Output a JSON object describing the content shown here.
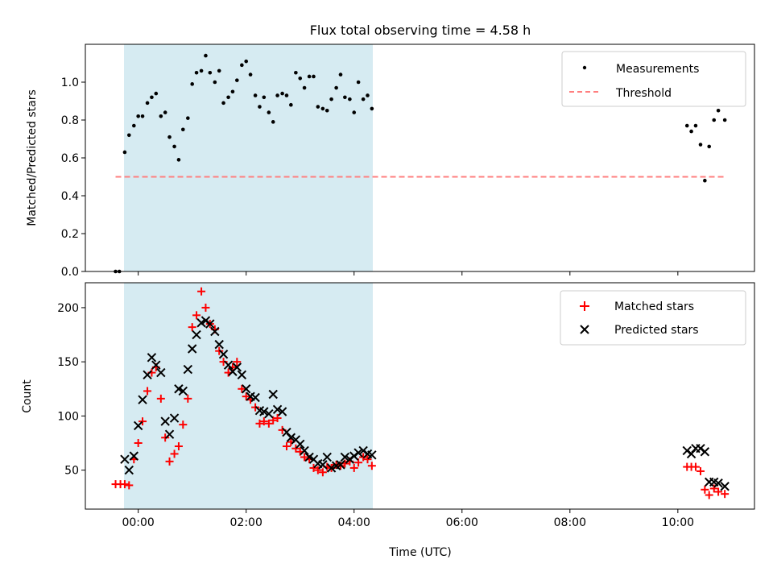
{
  "figure": {
    "title": "Flux total observing time = 4.58 h"
  },
  "colors": {
    "night_band": "#add8e6",
    "measurement": "#000000",
    "threshold": "#ff7f7f",
    "matched": "#ff0000",
    "predicted": "#000000"
  },
  "chart_data": [
    {
      "type": "scatter",
      "panel": "top",
      "title": "Flux total observing time = 4.58 h",
      "xlabel": "",
      "ylabel": "Matched/Predicted stars",
      "xlim": [
        -0.98,
        11.42
      ],
      "ylim": [
        0,
        1.2
      ],
      "x_ticks": [
        0,
        2,
        4,
        6,
        8,
        10
      ],
      "y_ticks": [
        0.0,
        0.2,
        0.4,
        0.6,
        0.8,
        1.0
      ],
      "y_tick_labels": [
        "0.0",
        "0.2",
        "0.4",
        "0.6",
        "0.8",
        "1.0"
      ],
      "grid": false,
      "legend": "upper right",
      "band": {
        "x_start": -0.25,
        "x_end": 4.33
      },
      "threshold_line": {
        "name": "Threshold",
        "y": 0.5,
        "x_start": -0.42,
        "x_end": 10.87
      },
      "series": [
        {
          "name": "Measurements",
          "marker": "dot",
          "x": [
            -0.42,
            -0.35,
            -0.25,
            -0.17,
            -0.08,
            0.0,
            0.08,
            0.17,
            0.25,
            0.33,
            0.42,
            0.5,
            0.58,
            0.67,
            0.75,
            0.83,
            0.92,
            1.0,
            1.08,
            1.17,
            1.25,
            1.33,
            1.42,
            1.5,
            1.58,
            1.67,
            1.75,
            1.83,
            1.92,
            2.0,
            2.08,
            2.17,
            2.25,
            2.33,
            2.42,
            2.5,
            2.58,
            2.67,
            2.75,
            2.83,
            2.92,
            3.0,
            3.08,
            3.17,
            3.25,
            3.33,
            3.42,
            3.5,
            3.58,
            3.67,
            3.75,
            3.83,
            3.92,
            4.0,
            4.08,
            4.17,
            4.25,
            4.33,
            10.17,
            10.25,
            10.33,
            10.42,
            10.5,
            10.58,
            10.67,
            10.75,
            10.87
          ],
          "y": [
            0.0,
            0.0,
            0.63,
            0.72,
            0.77,
            0.82,
            0.82,
            0.89,
            0.92,
            0.94,
            0.82,
            0.84,
            0.71,
            0.66,
            0.59,
            0.75,
            0.81,
            0.99,
            1.05,
            1.06,
            1.14,
            1.05,
            1.0,
            1.06,
            0.89,
            0.92,
            0.95,
            1.01,
            1.09,
            1.11,
            1.04,
            0.93,
            0.87,
            0.92,
            0.84,
            0.79,
            0.93,
            0.94,
            0.93,
            0.88,
            1.05,
            1.02,
            0.97,
            1.03,
            1.03,
            0.87,
            0.86,
            0.85,
            0.91,
            0.97,
            1.04,
            0.92,
            0.91,
            0.84,
            1.0,
            0.91,
            0.93,
            0.86,
            0.77,
            0.74,
            0.77,
            0.67,
            0.48,
            0.66,
            0.8,
            0.85,
            0.8
          ]
        }
      ]
    },
    {
      "type": "scatter",
      "panel": "bottom",
      "title": "",
      "xlabel": "Time (UTC)",
      "ylabel": "Count",
      "xlim": [
        -0.98,
        11.42
      ],
      "ylim": [
        14,
        223
      ],
      "x_ticks": [
        0,
        2,
        4,
        6,
        8,
        10
      ],
      "x_tick_labels": [
        "00:00",
        "02:00",
        "04:00",
        "06:00",
        "08:00",
        "10:00"
      ],
      "y_ticks": [
        50,
        100,
        150,
        200
      ],
      "y_tick_labels": [
        "50",
        "100",
        "150",
        "200"
      ],
      "grid": false,
      "legend": "upper right",
      "band": {
        "x_start": -0.25,
        "x_end": 4.33
      },
      "series": [
        {
          "name": "Matched stars",
          "marker": "plus",
          "x": [
            -0.42,
            -0.33,
            -0.25,
            -0.17,
            -0.08,
            0.0,
            0.08,
            0.17,
            0.25,
            0.33,
            0.42,
            0.5,
            0.58,
            0.67,
            0.75,
            0.83,
            0.92,
            1.0,
            1.08,
            1.17,
            1.25,
            1.33,
            1.42,
            1.5,
            1.58,
            1.67,
            1.75,
            1.83,
            1.92,
            2.0,
            2.08,
            2.17,
            2.25,
            2.33,
            2.42,
            2.5,
            2.58,
            2.67,
            2.75,
            2.83,
            2.92,
            3.0,
            3.08,
            3.17,
            3.25,
            3.33,
            3.42,
            3.5,
            3.58,
            3.67,
            3.75,
            3.83,
            3.92,
            4.0,
            4.08,
            4.17,
            4.25,
            4.33,
            10.17,
            10.25,
            10.33,
            10.42,
            10.5,
            10.58,
            10.67,
            10.75,
            10.87
          ],
          "y": [
            37,
            37,
            37,
            36,
            60,
            75,
            95,
            123,
            140,
            145,
            116,
            80,
            58,
            65,
            72,
            92,
            116,
            182,
            193,
            215,
            200,
            185,
            180,
            160,
            150,
            140,
            145,
            150,
            125,
            118,
            115,
            108,
            93,
            95,
            93,
            96,
            98,
            87,
            72,
            76,
            70,
            67,
            62,
            60,
            52,
            50,
            48,
            53,
            52,
            55,
            54,
            56,
            58,
            52,
            57,
            62,
            60,
            54,
            53,
            53,
            53,
            49,
            32,
            27,
            33,
            30,
            28
          ]
        },
        {
          "name": "Predicted stars",
          "marker": "x",
          "x": [
            -0.25,
            -0.17,
            -0.08,
            0.0,
            0.08,
            0.17,
            0.25,
            0.33,
            0.42,
            0.5,
            0.58,
            0.67,
            0.75,
            0.83,
            0.92,
            1.0,
            1.08,
            1.17,
            1.25,
            1.33,
            1.42,
            1.5,
            1.58,
            1.67,
            1.75,
            1.83,
            1.92,
            2.0,
            2.08,
            2.17,
            2.25,
            2.33,
            2.42,
            2.5,
            2.58,
            2.67,
            2.75,
            2.83,
            2.92,
            3.0,
            3.08,
            3.17,
            3.25,
            3.33,
            3.42,
            3.5,
            3.58,
            3.67,
            3.75,
            3.83,
            3.92,
            4.0,
            4.08,
            4.17,
            4.25,
            4.33,
            10.17,
            10.25,
            10.33,
            10.42,
            10.5,
            10.58,
            10.67,
            10.75,
            10.87
          ],
          "y": [
            60,
            50,
            63,
            91,
            115,
            138,
            154,
            147,
            140,
            95,
            83,
            98,
            125,
            123,
            143,
            162,
            175,
            186,
            188,
            185,
            178,
            166,
            157,
            147,
            141,
            145,
            138,
            125,
            118,
            117,
            105,
            104,
            102,
            120,
            106,
            104,
            85,
            80,
            78,
            74,
            68,
            62,
            60,
            56,
            55,
            62,
            52,
            54,
            55,
            62,
            60,
            63,
            66,
            68,
            65,
            64,
            68,
            65,
            70,
            70,
            67,
            39,
            39,
            38,
            35
          ]
        }
      ]
    }
  ]
}
